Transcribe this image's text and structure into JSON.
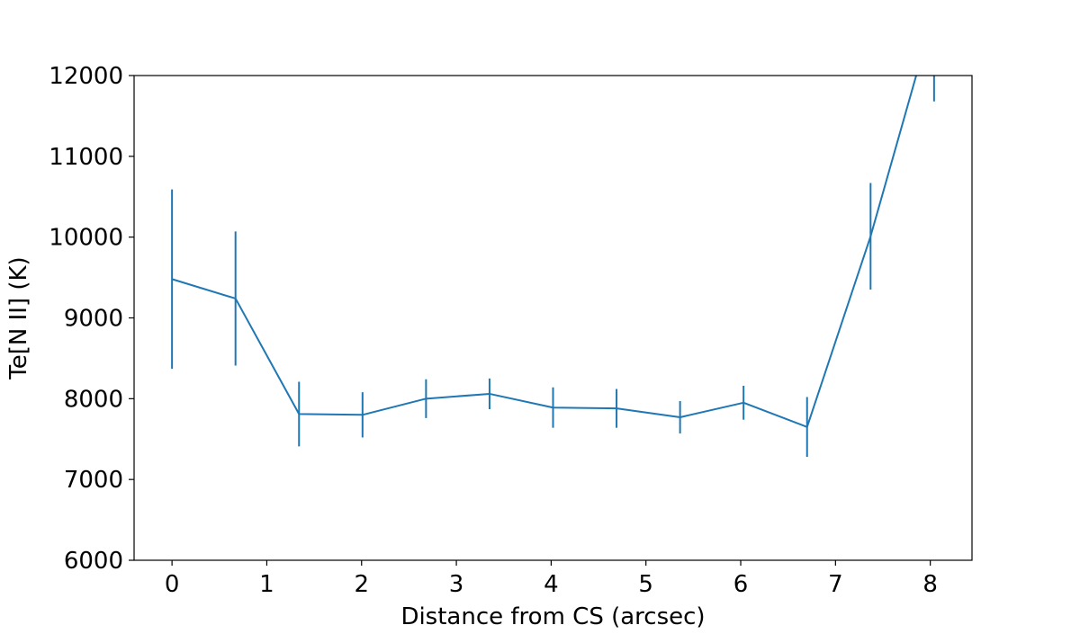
{
  "chart_data": {
    "type": "line",
    "title": "",
    "xlabel": "Distance from CS (arcsec)",
    "ylabel": "Te[N II] (K)",
    "xlim": [
      -0.4,
      8.44
    ],
    "ylim": [
      6000,
      12000
    ],
    "xticks": [
      0,
      1,
      2,
      3,
      4,
      5,
      6,
      7,
      8
    ],
    "yticks": [
      6000,
      7000,
      8000,
      9000,
      10000,
      11000,
      12000
    ],
    "grid": false,
    "legend": "none",
    "color": "#1f77b4",
    "series": [
      {
        "x": [
          0,
          0.67,
          1.34,
          2.01,
          2.68,
          3.35,
          4.02,
          4.69,
          5.36,
          6.03,
          6.7,
          7.37,
          8.04
        ],
        "y": [
          9480,
          9240,
          7810,
          7800,
          8000,
          8060,
          7890,
          7880,
          7770,
          7950,
          7650,
          10010,
          12780
        ],
        "yerr": [
          1110,
          830,
          400,
          280,
          240,
          190,
          250,
          240,
          200,
          210,
          370,
          660,
          1100
        ]
      }
    ]
  }
}
